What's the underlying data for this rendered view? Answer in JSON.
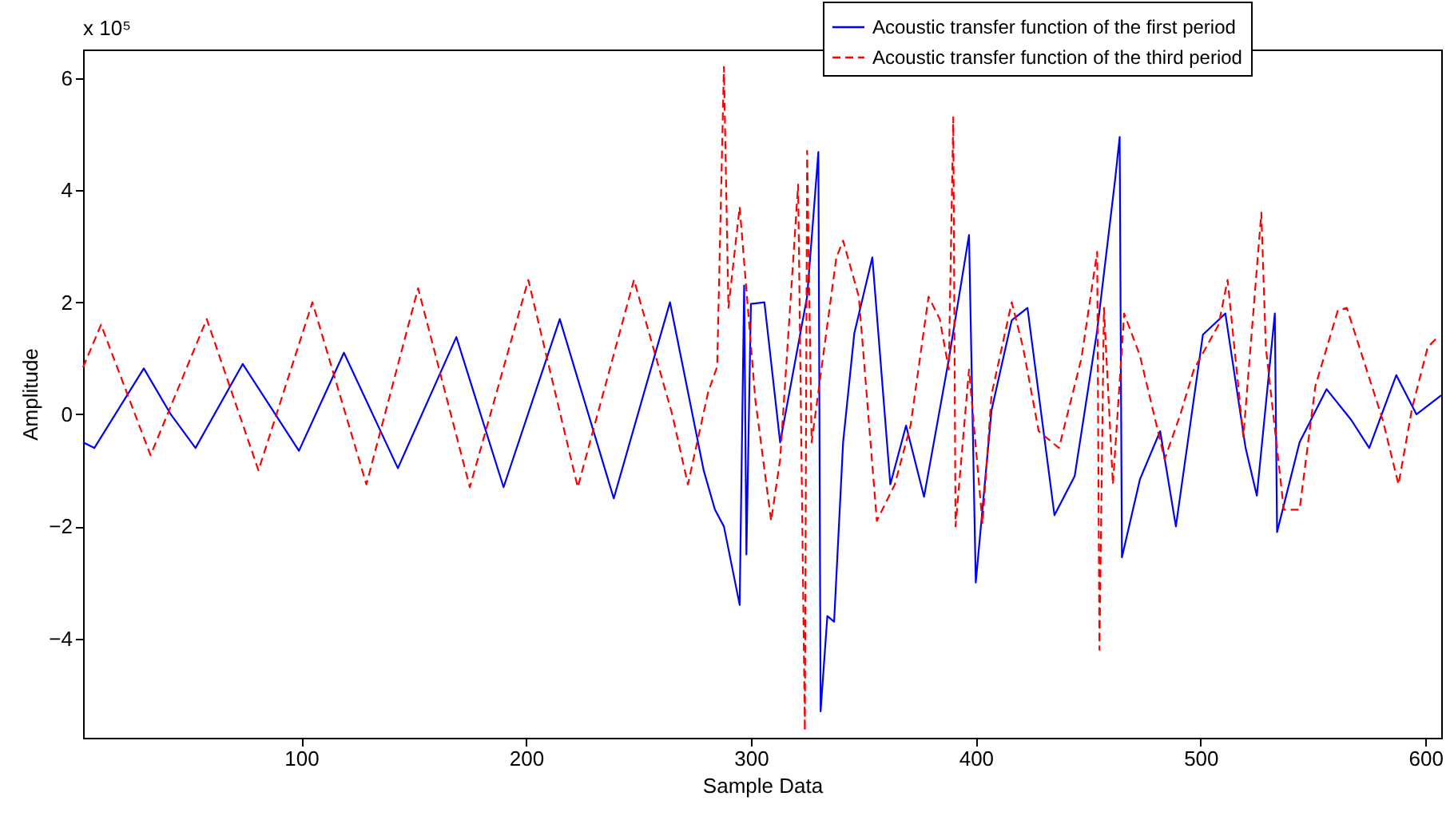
{
  "chart_data": {
    "type": "line",
    "xlabel": "Sample Data",
    "ylabel": "Amplitude",
    "annotations": [
      "x 10⁵"
    ],
    "xlim": [
      3,
      607
    ],
    "ylim": [
      -5.77,
      6.51
    ],
    "xticks": [
      100,
      200,
      300,
      400,
      500,
      600
    ],
    "yticks": [
      -4,
      -2,
      0,
      2,
      4,
      6
    ],
    "grid": false,
    "legend": "top right",
    "marker": "none",
    "series": [
      {
        "name": "Acoustic transfer function of the first period",
        "color": "#0000ff",
        "line_style": "solid",
        "x": [
          3,
          8,
          30,
          42,
          53,
          74,
          99,
          119,
          143,
          169,
          190,
          215,
          239,
          264,
          279,
          284,
          288,
          295,
          297,
          298,
          300,
          306,
          313,
          325,
          330,
          331,
          334,
          337,
          341,
          346,
          354,
          362,
          369,
          377,
          388,
          397,
          400,
          407,
          416,
          423,
          435,
          444,
          454,
          462,
          464,
          465,
          473,
          482,
          489,
          501,
          511,
          520,
          525,
          533,
          534,
          544,
          556,
          567,
          575,
          587,
          596,
          607
        ],
        "values": [
          -0.5,
          -0.6,
          0.82,
          0.0,
          -0.6,
          0.9,
          -0.65,
          1.1,
          -0.96,
          1.38,
          -1.3,
          1.7,
          -1.5,
          2.0,
          -1.0,
          -1.7,
          -2.0,
          -3.4,
          2.3,
          -2.5,
          1.97,
          2.0,
          -0.5,
          2.1,
          4.68,
          -5.3,
          -3.6,
          -3.7,
          -0.5,
          1.45,
          2.8,
          -1.25,
          -0.2,
          -1.47,
          0.98,
          3.2,
          -3.0,
          0.07,
          1.68,
          1.9,
          -1.8,
          -1.1,
          1.5,
          4.2,
          4.95,
          -2.55,
          -1.16,
          -0.3,
          -2.0,
          1.42,
          1.8,
          -0.6,
          -1.45,
          1.8,
          -2.1,
          -0.5,
          0.45,
          -0.1,
          -0.6,
          0.7,
          0.0,
          0.34
        ]
      },
      {
        "name": "Acoustic transfer function of the third period",
        "color": "#ff0000",
        "line_style": "dashed",
        "x": [
          3,
          11,
          33,
          58,
          81,
          105,
          129,
          152,
          175,
          201,
          223,
          248,
          265,
          272,
          281,
          285,
          288,
          290,
          295,
          302,
          309,
          313,
          321,
          324,
          325,
          327,
          338,
          341,
          348,
          356,
          364,
          371,
          379,
          384,
          388,
          390,
          391,
          397,
          403,
          407,
          416,
          421,
          428,
          437,
          447,
          454,
          455,
          457,
          461,
          466,
          473,
          484,
          491,
          497,
          508,
          512,
          519,
          527,
          529,
          537,
          544,
          551,
          561,
          565,
          573,
          581,
          588,
          594,
          601,
          606
        ],
        "values": [
          0.84,
          1.6,
          -0.73,
          1.7,
          -1.0,
          2.0,
          -1.25,
          2.25,
          -1.3,
          2.4,
          -1.3,
          2.4,
          0.0,
          -1.25,
          0.4,
          0.85,
          6.2,
          1.9,
          3.7,
          0.25,
          -1.9,
          -0.8,
          4.1,
          -5.65,
          4.7,
          -0.5,
          2.8,
          3.1,
          2.1,
          -1.9,
          -1.25,
          -0.2,
          2.1,
          1.7,
          0.8,
          5.3,
          -2.0,
          0.8,
          -1.95,
          0.35,
          2.0,
          1.2,
          -0.3,
          -0.6,
          1.0,
          2.9,
          -4.2,
          1.9,
          -1.25,
          1.8,
          1.05,
          -0.8,
          0.0,
          0.8,
          1.6,
          2.4,
          -0.4,
          3.6,
          1.2,
          -1.7,
          -1.7,
          0.5,
          1.85,
          1.9,
          0.9,
          -0.1,
          -1.25,
          0.1,
          1.2,
          1.4
        ]
      }
    ]
  }
}
